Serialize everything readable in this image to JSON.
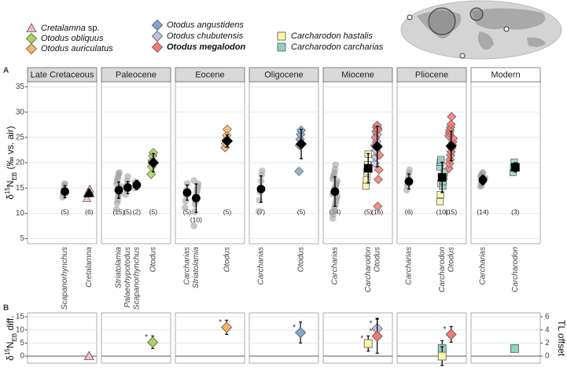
{
  "chart_data": {
    "type": "dot",
    "legend": [
      {
        "name": "Cretalamna",
        "suffix": " sp.",
        "color": "#f4b6d2",
        "shape": "triangle"
      },
      {
        "name": "Otodus obliquus",
        "color": "#a8d65a",
        "shape": "diamond"
      },
      {
        "name": "Otodus auriculatus",
        "color": "#f9b45f",
        "shape": "diamond"
      },
      {
        "name": "Otodus angustidens",
        "color": "#7ea9cf",
        "shape": "diamond"
      },
      {
        "name": "Otodus chubutensis",
        "color": "#c3c0e6",
        "shape": "diamond"
      },
      {
        "name": "Otodus megalodon",
        "color": "#f47a72",
        "shape": "diamond",
        "bold": true
      },
      {
        "name": "Carcharodon hastalis",
        "color": "#fbf5a8",
        "shape": "square"
      },
      {
        "name": "Carcharodon carcharias",
        "color": "#8fd3c5",
        "shape": "square"
      }
    ],
    "facets": [
      "Late Cretaceous",
      "Paleocene",
      "Eocene",
      "Oligocene",
      "Miocene",
      "Pliocene",
      "Modern"
    ],
    "panels": [
      {
        "label": "A",
        "y_label": [
          "δ",
          "15",
          "N",
          "EB",
          " (‰ vs. air)"
        ],
        "ylim": [
          4,
          36
        ],
        "yticks": [
          5,
          10,
          15,
          20,
          25,
          30,
          35
        ],
        "grid": true,
        "groups": [
          {
            "facet": 0,
            "category": "Scapanorhynchus",
            "n_label": "(5)",
            "mean": 14.3,
            "error": 1.2,
            "points": [
              {
                "species": null,
                "values": [
                  13.2,
                  14.0,
                  14.8,
                  15.6,
                  15.9
                ]
              }
            ]
          },
          {
            "facet": 0,
            "category": "Cretalamna",
            "n_label": "(6)",
            "mean": 14.0,
            "error": 0.7,
            "points": [
              {
                "species": 0,
                "values": [
                  12.9,
                  13.8,
                  14.1,
                  14.3,
                  14.5,
                  14.8
                ]
              }
            ]
          },
          {
            "facet": 1,
            "category": "Striatolamia",
            "n_label": "(15)",
            "mean": 14.6,
            "error": 1.6,
            "points": [
              {
                "species": null,
                "values": [
                  10.8,
                  12.0,
                  12.6,
                  13.3,
                  13.8,
                  14.2,
                  14.5,
                  14.9,
                  15.3,
                  15.8,
                  16.4,
                  16.9,
                  17.3,
                  17.8,
                  18.1
                ]
              }
            ]
          },
          {
            "facet": 1,
            "category": "Palaeohypotodus",
            "n_label": "(5)",
            "mean": 15.1,
            "error": 1.2,
            "points": [
              {
                "species": null,
                "values": [
                  13.7,
                  14.8,
                  15.5,
                  16.4,
                  17.3
                ]
              }
            ]
          },
          {
            "facet": 1,
            "category": "Scapanorhynchus",
            "n_label": "(2)",
            "mean": 15.6,
            "error": 0.9,
            "points": [
              {
                "species": null,
                "values": [
                  15.0,
                  16.2
                ]
              }
            ]
          },
          {
            "facet": 1,
            "category": "Otodus",
            "n_label": "(5)",
            "mean": 20.0,
            "error": 1.8,
            "points": [
              {
                "species": 1,
                "values": [
                  17.7,
                  19.2,
                  20.4,
                  21.4,
                  22.0
                ]
              }
            ]
          },
          {
            "facet": 2,
            "category": "Carcharias",
            "n_label": "(5)",
            "mean": 14.1,
            "error": 1.5,
            "points": [
              {
                "species": null,
                "values": [
                  11.1,
                  12.4,
                  13.6,
                  14.6,
                  15.9
                ]
              }
            ]
          },
          {
            "facet": 2,
            "category": "Striatolamia",
            "n_label": "(10)",
            "mean": 13.0,
            "error": 2.8,
            "points": [
              {
                "species": null,
                "values": [
                  7.5,
                  10.3,
                  11.8,
                  12.5,
                  13.3,
                  14.0,
                  14.6,
                  15.2,
                  15.8,
                  16.5
                ]
              }
            ]
          },
          {
            "facet": 2,
            "category": "Otodus",
            "n_label": "(5)",
            "mean": 24.3,
            "error": 1.2,
            "points": [
              {
                "species": 2,
                "values": [
                  23.0,
                  23.8,
                  24.5,
                  25.4,
                  26.6
                ]
              }
            ]
          },
          {
            "facet": 3,
            "category": "Carcharias",
            "n_label": "(7)",
            "mean": 14.8,
            "error": 2.6,
            "points": [
              {
                "species": null,
                "values": [
                  10.4,
                  12.6,
                  14.2,
                  15.1,
                  16.4,
                  17.6,
                  18.4
                ]
              }
            ]
          },
          {
            "facet": 3,
            "category": "Otodus",
            "n_label": "(5)",
            "mean": 23.7,
            "error": 2.9,
            "points": [
              {
                "species": 3,
                "values": [
                  18.3,
                  23.4,
                  24.6,
                  25.6,
                  26.4
                ]
              }
            ]
          },
          {
            "facet": 4,
            "category": "Carcharias",
            "n_label": "(24)",
            "mean": 14.3,
            "error": 2.9,
            "points": [
              {
                "species": null,
                "values": [
                  9.0,
                  9.8,
                  10.4,
                  11.0,
                  11.5,
                  12.0,
                  12.5,
                  13.0,
                  13.4,
                  13.8,
                  14.1,
                  14.4,
                  14.7,
                  15.0,
                  15.3,
                  15.7,
                  16.0,
                  16.4,
                  16.8,
                  17.2,
                  17.6,
                  18.1,
                  18.7,
                  19.6
                ]
              }
            ]
          },
          {
            "facet": 4,
            "category": "Carcharodon",
            "n_label": "(5)",
            "mean": 18.9,
            "error": 2.9,
            "points": [
              {
                "species": 6,
                "values": [
                  15.4,
                  16.6,
                  18.2,
                  19.6,
                  21.7
                ]
              }
            ]
          },
          {
            "facet": 4,
            "category": "Otodus",
            "n_label": "(16)",
            "mean": 23.2,
            "error": 4.0,
            "points": [
              {
                "species": 4,
                "values": [
                  19.9,
                  21.1,
                  22.4,
                  24.2,
                  25.6,
                  26.8
                ]
              },
              {
                "species": 5,
                "values": [
                  11.4,
                  16.7,
                  18.6,
                  21.5,
                  23.4,
                  25.0,
                  26.2,
                  27.0,
                  27.4,
                  26.5
                ]
              }
            ]
          },
          {
            "facet": 5,
            "category": "Carcharias",
            "n_label": "(6)",
            "mean": 16.3,
            "error": 1.5,
            "points": [
              {
                "species": null,
                "values": [
                  14.6,
                  15.5,
                  16.3,
                  17.1,
                  17.9,
                  18.6
                ]
              }
            ]
          },
          {
            "facet": 5,
            "category": "Carcharodon",
            "n_label": "(10)",
            "mean": 17.1,
            "error": 3.0,
            "points": [
              {
                "species": 6,
                "values": [
                  12.3,
                  13.7,
                  15.9
                ]
              },
              {
                "species": 7,
                "values": [
                  15.4,
                  16.3,
                  17.3,
                  18.2,
                  19.2,
                  20.1,
                  20.6
                ]
              }
            ]
          },
          {
            "facet": 5,
            "category": "Otodus",
            "n_label": "(15)",
            "mean": 23.3,
            "error": 2.9,
            "points": [
              {
                "species": 5,
                "values": [
                  18.9,
                  19.8,
                  20.6,
                  21.5,
                  22.2,
                  22.9,
                  23.5,
                  24.1,
                  24.8,
                  25.3,
                  25.9,
                  26.4,
                  27.0,
                  27.6,
                  29.1
                ]
              }
            ]
          },
          {
            "facet": 6,
            "category": "Carcharias",
            "n_label": "(14)",
            "mean": 16.6,
            "error": 0.9,
            "points": [
              {
                "species": null,
                "values": [
                  15.3,
                  15.6,
                  15.9,
                  16.1,
                  16.3,
                  16.5,
                  16.6,
                  16.8,
                  17.0,
                  17.2,
                  17.4,
                  17.6,
                  17.9,
                  18.1
                ]
              }
            ]
          },
          {
            "facet": 6,
            "category": "Carcharodon",
            "n_label": "(3)",
            "mean": 19.1,
            "error": 0.9,
            "points": [
              {
                "species": 7,
                "values": [
                  18.1,
                  19.0,
                  20.1
                ]
              }
            ]
          }
        ]
      },
      {
        "label": "B",
        "y_label": [
          "δ",
          "15",
          "N",
          "EB",
          " diff."
        ],
        "y2_label": "TL offset",
        "ylim": [
          -2.7,
          16.5
        ],
        "yticks": [
          0,
          5,
          10,
          15
        ],
        "y2lim": [
          -1.08,
          6.6
        ],
        "y2ticks": [
          0,
          2,
          4,
          6
        ],
        "grid": true,
        "groups": [
          {
            "facet": 0,
            "species": 0,
            "value": 0.0,
            "error": 0.7
          },
          {
            "facet": 1,
            "species": 1,
            "value": 5.3,
            "error": 2.4,
            "note": "*"
          },
          {
            "facet": 2,
            "species": 2,
            "value": 11.0,
            "error": 2.7,
            "note": "*"
          },
          {
            "facet": 3,
            "species": 3,
            "value": 9.0,
            "error": 4.0,
            "note": "*"
          },
          {
            "facet": 4,
            "species": 6,
            "value": 4.8,
            "error": 2.9,
            "note": "*"
          },
          {
            "facet": 4,
            "species": 4,
            "value": 10.5,
            "error": 3.9,
            "note": "*"
          },
          {
            "facet": 4,
            "species": 5,
            "value": 7.6,
            "error": 6.5,
            "note": "*"
          },
          {
            "facet": 5,
            "species": 7,
            "value": 2.9,
            "error": 3.0
          },
          {
            "facet": 5,
            "species": 6,
            "value": 0.0,
            "error": 3.6
          },
          {
            "facet": 5,
            "species": 5,
            "value": 8.3,
            "error": 3.0,
            "note": "*"
          },
          {
            "facet": 6,
            "species": 7,
            "value": 2.9,
            "error": 1.0
          }
        ]
      }
    ]
  }
}
